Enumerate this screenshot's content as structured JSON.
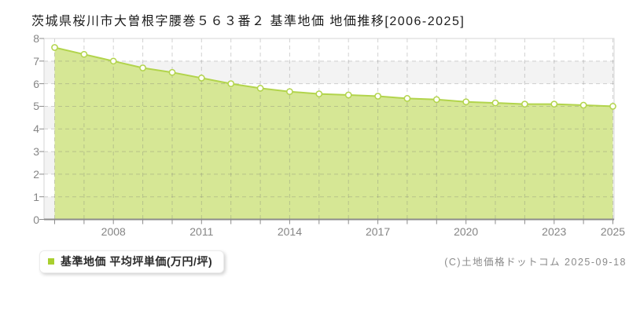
{
  "title": "茨城県桜川市大曽根字腰巻５６３番２ 基準地価 地価推移[2006-2025]",
  "legend": {
    "label": "基準地価 平均坪単価(万円/坪)"
  },
  "copyright": "(C)土地価格ドットコム 2025-09-18",
  "chart_data": {
    "type": "area",
    "title": "茨城県桜川市大曽根字腰巻５６３番２ 基準地価 地価推移[2006-2025]",
    "x": [
      2006,
      2007,
      2008,
      2009,
      2010,
      2011,
      2012,
      2013,
      2014,
      2015,
      2016,
      2017,
      2018,
      2019,
      2020,
      2021,
      2022,
      2023,
      2024,
      2025
    ],
    "series": [
      {
        "name": "基準地価 平均坪単価(万円/坪)",
        "values": [
          7.6,
          7.3,
          7.0,
          6.7,
          6.5,
          6.25,
          6.0,
          5.8,
          5.65,
          5.55,
          5.5,
          5.45,
          5.35,
          5.3,
          5.2,
          5.15,
          5.1,
          5.1,
          5.05,
          5.0
        ]
      }
    ],
    "ylabel": "万円/坪",
    "xlabel": "",
    "ylim": [
      0,
      8
    ],
    "yticks": [
      0,
      1,
      2,
      3,
      4,
      5,
      6,
      7,
      8
    ],
    "xticks": [
      2008,
      2011,
      2014,
      2017,
      2020,
      2023,
      2025
    ],
    "grid": true,
    "legend_position": "bottom-left",
    "colors": {
      "area": "#d6e795",
      "line": "#b2d44c",
      "marker_fill": "#fffef6",
      "legend_marker": "#a9cf2f",
      "band": "#f3f3f3",
      "grid": "rgba(115,115,115,0.32)",
      "border": "#d4d4d4",
      "axis": "#8c8c8c",
      "tick_label": "#858585"
    }
  }
}
